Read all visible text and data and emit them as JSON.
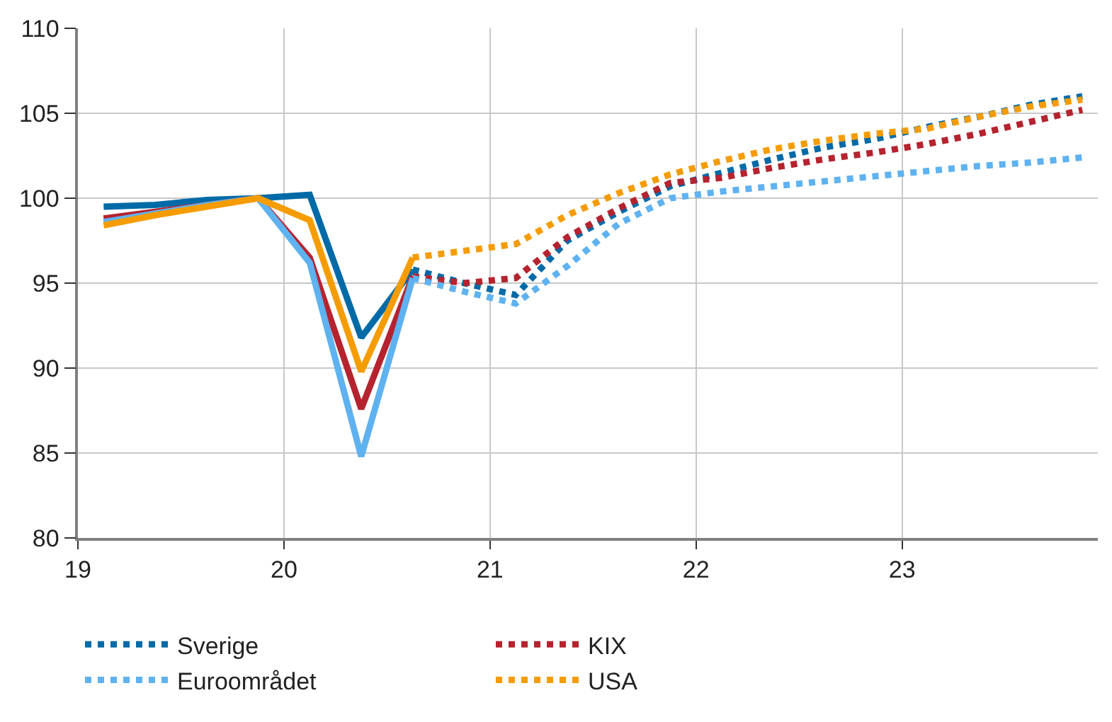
{
  "chart_data": {
    "type": "line",
    "xlim": [
      19,
      23.95
    ],
    "xticks": [
      19,
      20,
      21,
      22,
      23
    ],
    "ylim": [
      80,
      110
    ],
    "yticks": [
      80,
      85,
      90,
      95,
      100,
      105,
      110
    ],
    "grid": true,
    "legend": "bottom",
    "series": [
      {
        "color": "#006aa7",
        "line_style": "solid",
        "x": [
          19.125,
          19.375,
          19.625,
          19.875,
          20.125,
          20.375,
          20.625
        ],
        "values": [
          99.5,
          99.6,
          99.9,
          100,
          100.2,
          91.8,
          95.8
        ]
      },
      {
        "color": "#b5232f",
        "line_style": "solid",
        "x": [
          19.125,
          19.375,
          19.625,
          19.875,
          20.125,
          20.375,
          20.625
        ],
        "values": [
          98.8,
          99.2,
          99.6,
          100,
          96.5,
          87.6,
          95.4
        ]
      },
      {
        "color": "#5eb2f0",
        "line_style": "solid",
        "x": [
          19.125,
          19.375,
          19.625,
          19.875,
          20.125,
          20.375,
          20.625
        ],
        "values": [
          98.6,
          99.1,
          99.6,
          100,
          96.2,
          84.8,
          95.3
        ]
      },
      {
        "color": "#f59c00",
        "line_style": "solid",
        "x": [
          19.125,
          19.375,
          19.625,
          19.875,
          20.125,
          20.375,
          20.625
        ],
        "values": [
          98.4,
          99.0,
          99.5,
          100,
          98.7,
          89.8,
          96.5
        ]
      },
      {
        "name": "Sverige",
        "color": "#006aa7",
        "line_style": "dotted",
        "x": [
          20.625,
          20.875,
          21.125,
          21.375,
          21.625,
          21.875,
          22.125,
          22.375,
          22.625,
          22.875,
          23.125,
          23.375,
          23.625,
          23.875
        ],
        "values": [
          95.8,
          95.0,
          94.3,
          97.5,
          99.2,
          100.7,
          101.5,
          102.3,
          103.0,
          103.5,
          104.2,
          104.8,
          105.5,
          106.0
        ]
      },
      {
        "name": "KIX",
        "color": "#b5232f",
        "line_style": "dotted",
        "x": [
          20.625,
          20.875,
          21.125,
          21.375,
          21.625,
          21.875,
          22.125,
          22.375,
          22.625,
          22.875,
          23.125,
          23.375,
          23.625,
          23.875
        ],
        "values": [
          95.4,
          95.0,
          95.3,
          97.7,
          99.4,
          100.9,
          101.2,
          101.8,
          102.3,
          102.7,
          103.2,
          103.8,
          104.5,
          105.2
        ]
      },
      {
        "name": "Euroområdet",
        "color": "#5eb2f0",
        "line_style": "dotted",
        "x": [
          20.625,
          20.875,
          21.125,
          21.375,
          21.625,
          21.875,
          22.125,
          22.375,
          22.625,
          22.875,
          23.125,
          23.375,
          23.625,
          23.875
        ],
        "values": [
          95.3,
          94.5,
          93.8,
          96.0,
          98.5,
          100.0,
          100.4,
          100.7,
          101.0,
          101.3,
          101.6,
          101.9,
          102.1,
          102.4
        ]
      },
      {
        "name": "USA",
        "color": "#f59c00",
        "line_style": "dotted",
        "x": [
          20.625,
          20.875,
          21.125,
          21.375,
          21.625,
          21.875,
          22.125,
          22.375,
          22.625,
          22.875,
          23.125,
          23.375,
          23.625,
          23.875
        ],
        "values": [
          96.5,
          96.9,
          97.3,
          99.0,
          100.3,
          101.4,
          102.2,
          102.9,
          103.4,
          103.8,
          104.1,
          104.8,
          105.4,
          105.8
        ]
      }
    ]
  }
}
